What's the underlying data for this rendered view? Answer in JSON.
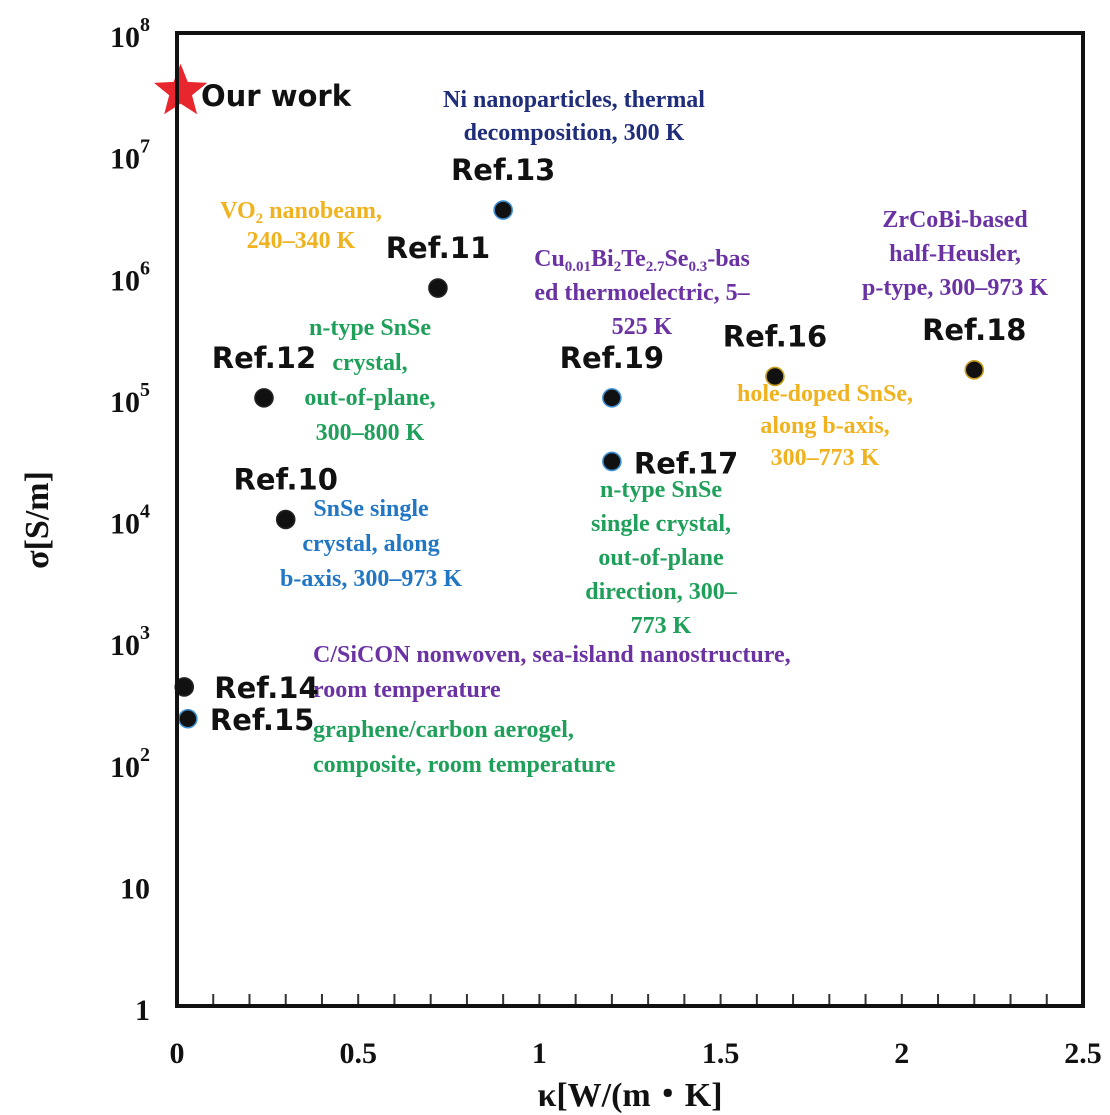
{
  "chart_data": {
    "type": "scatter",
    "title": "",
    "xlabel": "κ[W/(m・K]",
    "ylabel": "σ[S/m]",
    "xlim": [
      0,
      2.5
    ],
    "ylim": [
      1,
      100000000
    ],
    "y_scale": "log",
    "x_ticks": [
      "0",
      "0.5",
      "1",
      "1.5",
      "2",
      "2.5"
    ],
    "y_ticks": [
      {
        "base": "1",
        "exp": ""
      },
      {
        "base": "10",
        "exp": ""
      },
      {
        "base": "10",
        "exp": "2"
      },
      {
        "base": "10",
        "exp": "3"
      },
      {
        "base": "10",
        "exp": "4"
      },
      {
        "base": "10",
        "exp": "5"
      },
      {
        "base": "10",
        "exp": "6"
      },
      {
        "base": "10",
        "exp": "7"
      },
      {
        "base": "10",
        "exp": "8"
      }
    ],
    "grid": false,
    "star_point": {
      "label": "Our work",
      "x": 0.01,
      "y": 33000000,
      "color": "#e8262d"
    },
    "points": [
      {
        "label": "Ref.13",
        "x": 0.9,
        "y": 3500000,
        "edge": "#3d8fd1"
      },
      {
        "label": "Ref.11",
        "x": 0.72,
        "y": 800000,
        "edge": "#222222"
      },
      {
        "label": "Ref.12",
        "x": 0.24,
        "y": 100000,
        "edge": "#222222"
      },
      {
        "label": "Ref.10",
        "x": 0.3,
        "y": 10000,
        "edge": "#222222"
      },
      {
        "label": "Ref.19",
        "x": 1.2,
        "y": 100000,
        "edge": "#3d8fd1"
      },
      {
        "label": "Ref.17",
        "x": 1.2,
        "y": 30000,
        "edge": "#3d8fd1"
      },
      {
        "label": "Ref.16",
        "x": 1.65,
        "y": 150000,
        "edge": "#c8a020"
      },
      {
        "label": "Ref.18",
        "x": 2.2,
        "y": 170000,
        "edge": "#c8a020"
      },
      {
        "label": "Ref.14",
        "x": 0.02,
        "y": 420,
        "edge": "#222222"
      },
      {
        "label": "Ref.15",
        "x": 0.03,
        "y": 230,
        "edge": "#3d8fd1"
      }
    ],
    "annotations": [
      {
        "name": "ni-nanoparticles-note",
        "color": "#1f2d7a",
        "lines": [
          [
            {
              "t": "Ni nanoparticles, thermal"
            }
          ],
          [
            {
              "t": "decomposition, 300 K"
            }
          ]
        ]
      },
      {
        "name": "vo2-note",
        "color": "#f0b21e",
        "lines": [
          [
            {
              "t": "VO"
            },
            {
              "t": "2",
              "sub": true
            },
            {
              "t": " nanobeam,"
            }
          ],
          [
            {
              "t": "240–340 K"
            }
          ]
        ]
      },
      {
        "name": "zrcobi-note",
        "color": "#6a32a3",
        "lines": [
          [
            {
              "t": "ZrCoBi-based"
            }
          ],
          [
            {
              "t": "half-Heusler,"
            }
          ],
          [
            {
              "t": "p-type, 300–973 K"
            }
          ]
        ]
      },
      {
        "name": "cubite-note",
        "color": "#6a32a3",
        "lines": [
          [
            {
              "t": "Cu"
            },
            {
              "t": "0.01",
              "sub": true
            },
            {
              "t": "Bi"
            },
            {
              "t": "2",
              "sub": true
            },
            {
              "t": "Te"
            },
            {
              "t": "2.7",
              "sub": true
            },
            {
              "t": "Se"
            },
            {
              "t": "0.3",
              "sub": true
            },
            {
              "t": "-bas"
            }
          ],
          [
            {
              "t": "ed thermoelectric, 5–"
            }
          ],
          [
            {
              "t": "525 K"
            }
          ]
        ]
      },
      {
        "name": "ntype-snse-crystal-note",
        "color": "#1fa05a",
        "lines": [
          [
            {
              "t": "n-type SnSe"
            }
          ],
          [
            {
              "t": "crystal,"
            }
          ],
          [
            {
              "t": "out-of-plane,"
            }
          ],
          [
            {
              "t": "300–800 K"
            }
          ]
        ]
      },
      {
        "name": "hole-doped-snse-note",
        "color": "#f0b21e",
        "lines": [
          [
            {
              "t": "hole-doped SnSe,"
            }
          ],
          [
            {
              "t": "along b-axis,"
            }
          ],
          [
            {
              "t": "300–773 K"
            }
          ]
        ]
      },
      {
        "name": "snse-single-crystal-note",
        "color": "#2277c4",
        "lines": [
          [
            {
              "t": "SnSe single"
            }
          ],
          [
            {
              "t": "crystal, along"
            }
          ],
          [
            {
              "t": "b-axis, 300–973 K"
            }
          ]
        ]
      },
      {
        "name": "ntype-snse-single-crystal-note",
        "color": "#1fa05a",
        "lines": [
          [
            {
              "t": "n-type SnSe"
            }
          ],
          [
            {
              "t": "single crystal,"
            }
          ],
          [
            {
              "t": "out-of-plane"
            }
          ],
          [
            {
              "t": "direction, 300–"
            }
          ],
          [
            {
              "t": "773 K"
            }
          ]
        ]
      },
      {
        "name": "csicon-note",
        "color": "#6a32a3",
        "lines": [
          [
            {
              "t": "C/SiCON nonwoven, sea-island nanostructure,"
            }
          ],
          [
            {
              "t": "room temperature"
            }
          ]
        ]
      },
      {
        "name": "graphene-aerogel-note",
        "color": "#1fa05a",
        "lines": [
          [
            {
              "t": "graphene/carbon aerogel,"
            }
          ],
          [
            {
              "t": "composite, room temperature"
            }
          ]
        ]
      }
    ]
  }
}
